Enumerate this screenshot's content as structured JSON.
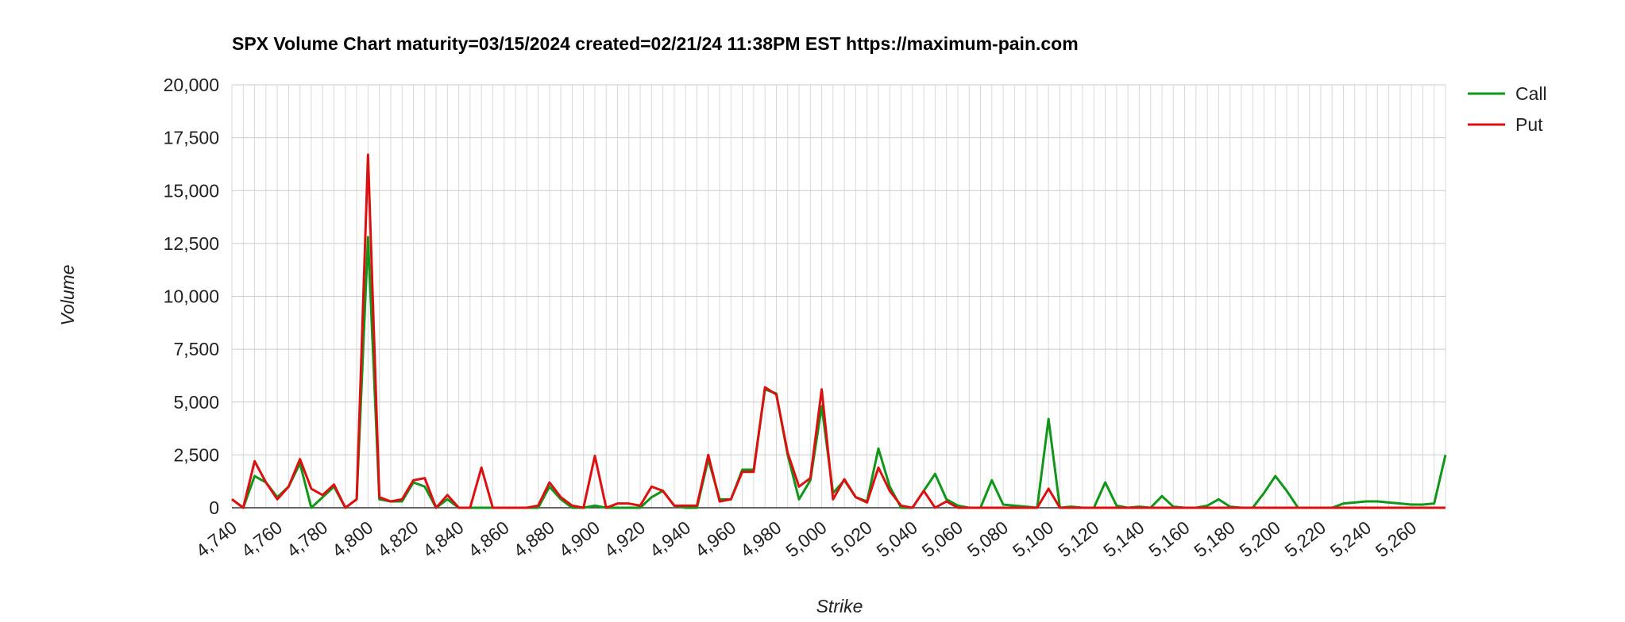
{
  "chart_data": {
    "type": "line",
    "title": "SPX Volume Chart maturity=03/15/2024 created=02/21/24 11:38PM EST https://maximum-pain.com",
    "xlabel": "Strike",
    "ylabel": "Volume",
    "xlim": [
      4740,
      5275
    ],
    "ylim": [
      0,
      20000
    ],
    "x_ticks": [
      "4,740",
      "4,760",
      "4,780",
      "4,800",
      "4,820",
      "4,840",
      "4,860",
      "4,880",
      "4,900",
      "4,920",
      "4,940",
      "4,960",
      "4,980",
      "5,000",
      "5,020",
      "5,040",
      "5,060",
      "5,080",
      "5,100",
      "5,120",
      "5,140",
      "5,160",
      "5,180",
      "5,200",
      "5,220",
      "5,240",
      "5,260"
    ],
    "y_ticks": [
      "0",
      "2,500",
      "5,000",
      "7,500",
      "10,000",
      "12,500",
      "15,000",
      "17,500",
      "20,000"
    ],
    "grid": true,
    "legend_position": "top-right",
    "x": [
      4740,
      4745,
      4750,
      4755,
      4760,
      4765,
      4770,
      4775,
      4780,
      4785,
      4790,
      4795,
      4800,
      4805,
      4810,
      4815,
      4820,
      4825,
      4830,
      4835,
      4840,
      4845,
      4850,
      4855,
      4860,
      4865,
      4870,
      4875,
      4880,
      4885,
      4890,
      4895,
      4900,
      4905,
      4910,
      4915,
      4920,
      4925,
      4930,
      4935,
      4940,
      4945,
      4950,
      4955,
      4960,
      4965,
      4970,
      4975,
      4980,
      4985,
      4990,
      4995,
      5000,
      5005,
      5010,
      5015,
      5020,
      5025,
      5030,
      5035,
      5040,
      5045,
      5050,
      5055,
      5060,
      5065,
      5070,
      5075,
      5080,
      5085,
      5090,
      5095,
      5100,
      5105,
      5110,
      5115,
      5120,
      5125,
      5130,
      5135,
      5140,
      5145,
      5150,
      5155,
      5160,
      5165,
      5170,
      5175,
      5180,
      5185,
      5190,
      5195,
      5200,
      5205,
      5210,
      5215,
      5220,
      5225,
      5230,
      5235,
      5240,
      5245,
      5250,
      5255,
      5260,
      5265,
      5270,
      5275
    ],
    "series": [
      {
        "name": "Call",
        "color": "#109618",
        "values": [
          400,
          0,
          1500,
          1200,
          500,
          1000,
          2100,
          0,
          500,
          1000,
          0,
          400,
          12800,
          400,
          300,
          300,
          1200,
          1000,
          0,
          400,
          0,
          0,
          0,
          0,
          0,
          0,
          0,
          0,
          1000,
          400,
          0,
          0,
          100,
          0,
          0,
          0,
          0,
          500,
          800,
          100,
          0,
          0,
          2300,
          400,
          400,
          1800,
          1800,
          5600,
          5400,
          2500,
          400,
          1300,
          4800,
          700,
          1300,
          500,
          300,
          2800,
          1000,
          0,
          0,
          800,
          1600,
          400,
          100,
          0,
          0,
          1300,
          150,
          100,
          50,
          0,
          4200,
          0,
          50,
          0,
          0,
          1200,
          100,
          0,
          50,
          0,
          550,
          50,
          0,
          0,
          100,
          400,
          50,
          0,
          0,
          700,
          1500,
          800,
          0,
          0,
          0,
          0,
          200,
          250,
          300,
          300,
          250,
          200,
          150,
          150,
          200,
          2500
        ]
      },
      {
        "name": "Put",
        "color": "#dc1010",
        "values": [
          400,
          0,
          2200,
          1200,
          400,
          1000,
          2300,
          900,
          600,
          1100,
          0,
          400,
          16700,
          500,
          300,
          400,
          1300,
          1400,
          0,
          600,
          0,
          0,
          1900,
          0,
          0,
          0,
          0,
          100,
          1200,
          500,
          100,
          0,
          2450,
          0,
          200,
          200,
          100,
          1000,
          800,
          100,
          100,
          100,
          2500,
          300,
          400,
          1700,
          1700,
          5700,
          5350,
          2600,
          1000,
          1400,
          5600,
          400,
          1350,
          500,
          250,
          1900,
          800,
          100,
          0,
          800,
          0,
          300,
          0,
          0,
          0,
          0,
          0,
          0,
          0,
          0,
          900,
          0,
          0,
          0,
          0,
          0,
          0,
          0,
          0,
          0,
          0,
          0,
          0,
          0,
          0,
          0,
          0,
          0,
          0,
          0,
          0,
          0,
          0,
          0,
          0,
          0,
          0,
          0,
          0,
          0,
          0,
          0,
          0,
          0,
          0,
          0
        ]
      }
    ]
  }
}
